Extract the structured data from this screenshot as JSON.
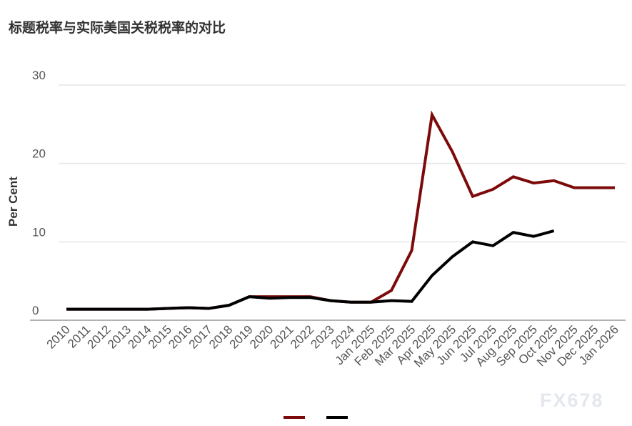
{
  "chart_data": {
    "type": "line",
    "title": "标题税率与实际美国关税税率的对比",
    "ylabel": "Per Cent",
    "xlabel": "",
    "ylim": [
      0,
      30
    ],
    "yticks": [
      0,
      10,
      20,
      30
    ],
    "grid": true,
    "legend": "bottom-center",
    "categories": [
      "2010",
      "2011",
      "2012",
      "2013",
      "2014",
      "2015",
      "2016",
      "2017",
      "2018",
      "2019",
      "2020",
      "2021",
      "2022",
      "2023",
      "2024",
      "Jan 2025",
      "Feb 2025",
      "Mar 2025",
      "Apr 2025",
      "May 2025",
      "Jun 2025",
      "Jul 2025",
      "Aug 2025",
      "Sep 2025",
      "Oct 2025",
      "Nov 2025",
      "Dec 2025",
      "Jan 2026"
    ],
    "series": [
      {
        "color": "#7d0a0a",
        "values": [
          1.4,
          1.4,
          1.4,
          1.4,
          1.4,
          1.5,
          1.6,
          1.5,
          1.9,
          3.0,
          3.0,
          3.0,
          3.0,
          2.5,
          2.3,
          2.3,
          3.8,
          8.9,
          26.2,
          21.5,
          15.8,
          16.7,
          18.3,
          17.5,
          17.8,
          16.9,
          16.9,
          16.9
        ]
      },
      {
        "color": "#000000",
        "values": [
          1.4,
          1.4,
          1.4,
          1.4,
          1.4,
          1.5,
          1.6,
          1.5,
          1.9,
          3.0,
          2.8,
          2.9,
          2.9,
          2.5,
          2.3,
          2.3,
          2.5,
          2.4,
          5.7,
          8.1,
          10.0,
          9.5,
          11.2,
          10.7,
          11.4,
          null,
          null,
          null
        ]
      }
    ]
  },
  "watermark": "FX678"
}
